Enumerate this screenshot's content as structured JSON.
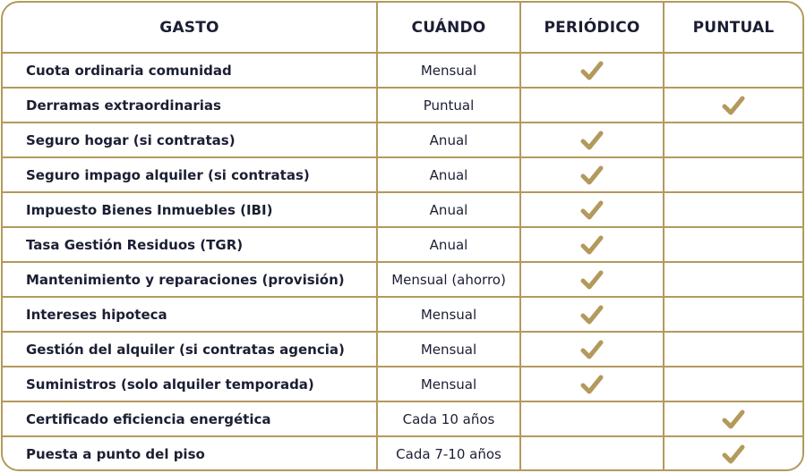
{
  "table": {
    "headers": [
      "GASTO",
      "CUÁNDO",
      "PERIÓDICO",
      "PUNTUAL"
    ],
    "check_color": "#b39a5c",
    "border_color": "#b39a5c",
    "rows": [
      {
        "gasto": "Cuota ordinaria comunidad",
        "cuando": "Mensual",
        "periodico": true,
        "puntual": false
      },
      {
        "gasto": "Derramas extraordinarias",
        "cuando": "Puntual",
        "periodico": false,
        "puntual": true
      },
      {
        "gasto": "Seguro hogar (si contratas)",
        "cuando": "Anual",
        "periodico": true,
        "puntual": false
      },
      {
        "gasto": "Seguro impago alquiler (si contratas)",
        "cuando": "Anual",
        "periodico": true,
        "puntual": false
      },
      {
        "gasto": "Impuesto Bienes Inmuebles (IBI)",
        "cuando": "Anual",
        "periodico": true,
        "puntual": false
      },
      {
        "gasto": "Tasa Gestión Residuos (TGR)",
        "cuando": "Anual",
        "periodico": true,
        "puntual": false
      },
      {
        "gasto": "Mantenimiento y reparaciones (provisión)",
        "cuando": "Mensual (ahorro)",
        "periodico": true,
        "puntual": false
      },
      {
        "gasto": "Intereses hipoteca",
        "cuando": "Mensual",
        "periodico": true,
        "puntual": false
      },
      {
        "gasto": "Gestión del alquiler (si contratas agencia)",
        "cuando": "Mensual",
        "periodico": true,
        "puntual": false
      },
      {
        "gasto": "Suministros (solo alquiler temporada)",
        "cuando": "Mensual",
        "periodico": true,
        "puntual": false
      },
      {
        "gasto": "Certificado eficiencia energética",
        "cuando": "Cada 10 años",
        "periodico": false,
        "puntual": true
      },
      {
        "gasto": "Puesta a punto del piso",
        "cuando": "Cada 7-10 años",
        "periodico": false,
        "puntual": true
      }
    ]
  }
}
